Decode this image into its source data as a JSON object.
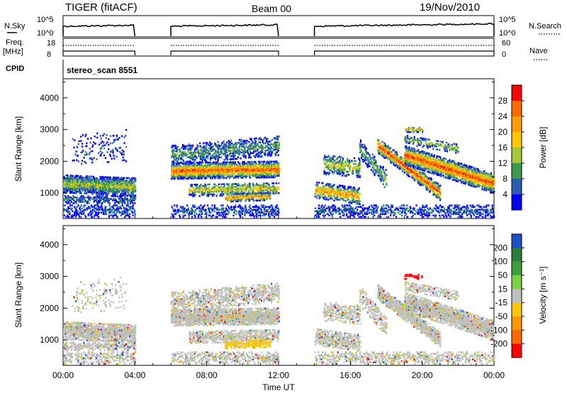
{
  "header": {
    "title": "TIGER (fitACF)",
    "beam": "Beam 00",
    "date": "19/Nov/2010"
  },
  "noise_panel": {
    "left_label": "N.Sky",
    "right_label": "N.Search",
    "left_ticks": [
      "10^5",
      "10^0"
    ],
    "right_ticks": [
      "10^5",
      "10^0"
    ]
  },
  "freq_panel": {
    "left_label_line1": "Freq.",
    "left_label_line2": "[MHz]",
    "right_label": "Nave",
    "left_ticks": [
      "18",
      "8"
    ],
    "right_ticks": [
      "60",
      "0"
    ]
  },
  "cpid_panel": {
    "label": "CPID",
    "text": "stereo_scan 8551"
  },
  "power_colorbar": {
    "title": "Power [dB]",
    "ticks": [
      "28",
      "24",
      "20",
      "16",
      "12",
      "8",
      "4"
    ],
    "colors": [
      "#ff0000",
      "#ff6a00",
      "#ff9e00",
      "#ffc800",
      "#a8c83c",
      "#3c9a50",
      "#2a5fb0",
      "#0000ff"
    ]
  },
  "velocity_colorbar": {
    "title": "Velocity [m s⁻¹]",
    "ticks": [
      "200",
      "100",
      "50",
      "15",
      "-15",
      "-50",
      "-100",
      "-200"
    ],
    "colors": [
      "#1e50c8",
      "#2e7d3a",
      "#3ca03c",
      "#7fd040",
      "#c0c0c0",
      "#ffc800",
      "#ff9800",
      "#ff6a00",
      "#ff0000"
    ]
  },
  "chart_data": [
    {
      "type": "heatmap",
      "panel": "power",
      "ylabel": "Slant Range [km]",
      "y_ticks": [
        1000,
        2000,
        3000,
        4000
      ],
      "ylim": [
        200,
        4600
      ],
      "x_ticks": [
        "00:00",
        "04:00",
        "08:00",
        "12:00",
        "16:00",
        "20:00",
        "00:00"
      ],
      "xlim_hours": [
        0,
        24
      ],
      "data_gaps_hours": [
        [
          4,
          6
        ],
        [
          12,
          14
        ]
      ],
      "colorbar_range_db": [
        0,
        32
      ]
    },
    {
      "type": "heatmap",
      "panel": "velocity",
      "ylabel": "Slant Range [km]",
      "y_ticks": [
        1000,
        2000,
        3000,
        4000
      ],
      "ylim": [
        200,
        4600
      ],
      "x_ticks": [
        "00:00",
        "04:00",
        "08:00",
        "12:00",
        "16:00",
        "20:00",
        "00:00"
      ],
      "xlabel": "Time UT",
      "xlim_hours": [
        0,
        24
      ],
      "data_gaps_hours": [
        [
          4,
          6
        ],
        [
          12,
          14
        ]
      ],
      "colorbar_range_ms": [
        -250,
        250
      ]
    }
  ]
}
